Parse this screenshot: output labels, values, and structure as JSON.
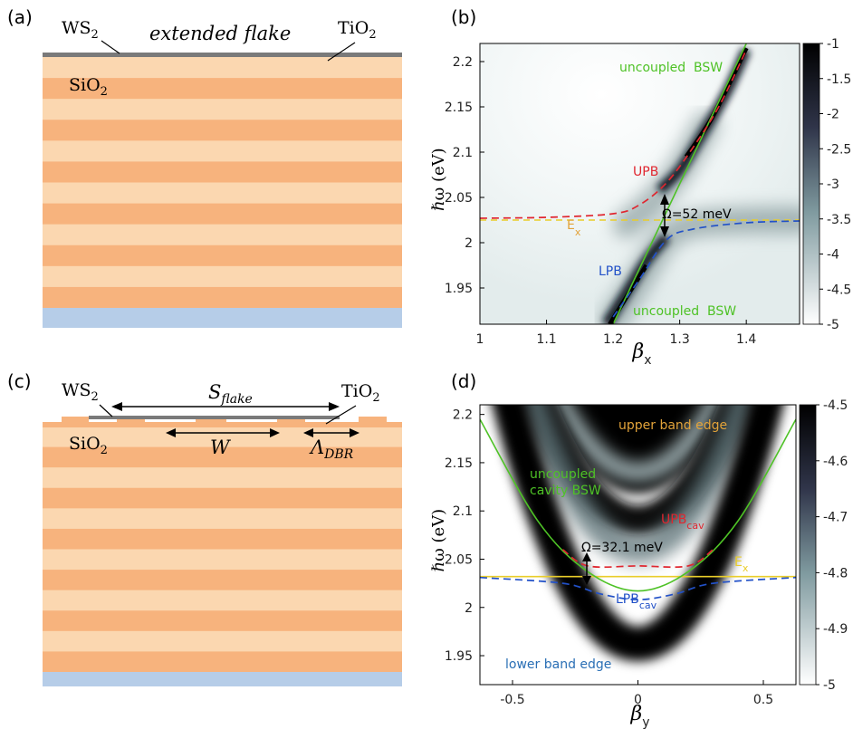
{
  "panels": {
    "a": {
      "label": "(a)",
      "ws2": "WS",
      "ws2_sub": "2",
      "flake": "extended flake",
      "tio2": "TiO",
      "tio2_sub": "2",
      "sio2": "SiO",
      "sio2_sub": "2"
    },
    "c": {
      "label": "(c)",
      "ws2": "WS",
      "ws2_sub": "2",
      "s": "S",
      "s_sub": "flake",
      "tio2": "TiO",
      "tio2_sub": "2",
      "sio2": "SiO",
      "sio2_sub": "2",
      "w": "W",
      "lambda": "Λ",
      "lambda_sub": "DBR"
    },
    "b_label": "(b)",
    "d_label": "(d)"
  },
  "colors": {
    "sio2_layer": "#fbd7b0",
    "tio2_layer": "#f7b37d",
    "substrate": "#b6cde8",
    "red": "#e0262f",
    "blue": "#2251c8",
    "green": "#4ec226",
    "yellow": "#e9cd2a",
    "orange": "#e2a33a"
  },
  "chart_data": [
    {
      "type": "heatmap",
      "panel": "(b)",
      "xlabel": "β",
      "xlabel_sub": "x",
      "ylabel": "ℏω (eV)",
      "xlim": [
        1.0,
        1.48
      ],
      "ylim": [
        1.91,
        2.22
      ],
      "xticks": [
        1,
        1.1,
        1.2,
        1.3,
        1.4
      ],
      "yticks": [
        1.95,
        2,
        2.05,
        2.1,
        2.15,
        2.2
      ],
      "colorbar": {
        "range": [
          -5,
          -1
        ],
        "ticks": [
          -1,
          -1.5,
          -2,
          -2.5,
          -3,
          -3.5,
          -4,
          -4.5,
          -5
        ]
      },
      "exciton_energy": 2.025,
      "rabi": "Ω=52 meV",
      "labels": {
        "upb": "UPB",
        "lpb": "LPB",
        "ex": "E",
        "ex_sub": "x",
        "bsw_top": "uncoupled  BSW",
        "bsw_bottom": "uncoupled  BSW"
      },
      "series": [
        {
          "name": "UPB",
          "x": [
            1.0,
            1.1,
            1.2,
            1.24,
            1.28,
            1.32,
            1.36,
            1.4
          ],
          "y": [
            2.027,
            2.028,
            2.032,
            2.042,
            2.066,
            2.105,
            2.152,
            2.213
          ]
        },
        {
          "name": "LPB",
          "x": [
            1.2,
            1.24,
            1.28,
            1.32,
            1.4,
            1.48
          ],
          "y": [
            1.918,
            1.96,
            2.003,
            2.015,
            2.022,
            2.024
          ]
        },
        {
          "name": "uncoupled BSW",
          "x": [
            1.2,
            1.4
          ],
          "y": [
            1.91,
            2.22
          ]
        }
      ]
    },
    {
      "type": "heatmap",
      "panel": "(d)",
      "xlabel": "β",
      "xlabel_sub": "y",
      "ylabel": "ℏω (eV)",
      "xlim": [
        -0.63,
        0.63
      ],
      "ylim": [
        1.92,
        2.21
      ],
      "xticks": [
        -0.5,
        0,
        0.5
      ],
      "yticks": [
        1.95,
        2,
        2.05,
        2.1,
        2.15,
        2.2
      ],
      "colorbar": {
        "range": [
          -5,
          -4.5
        ],
        "ticks": [
          -4.5,
          -4.6,
          -4.7,
          -4.8,
          -4.9,
          -5
        ]
      },
      "exciton_energy": 2.032,
      "rabi": "Ω=32.1 meV",
      "labels": {
        "upper": "upper band edge",
        "lower": "lower band edge",
        "bsw1": "uncoupled",
        "bsw2": "cavity BSW",
        "upb": "UPB",
        "upb_sub": "cav",
        "lpb": "LPB",
        "lpb_sub": "cav",
        "ex": "E",
        "ex_sub": "x"
      },
      "series": [
        {
          "name": "uncoupled cavity BSW",
          "x": [
            -0.63,
            -0.4,
            -0.2,
            0,
            0.2,
            0.4,
            0.63
          ],
          "y": [
            2.195,
            2.09,
            2.037,
            2.017,
            2.037,
            2.09,
            2.195
          ]
        },
        {
          "name": "UPB",
          "x": [
            -0.3,
            -0.2,
            0,
            0.2,
            0.3
          ],
          "y": [
            2.06,
            2.043,
            2.043,
            2.043,
            2.06
          ]
        },
        {
          "name": "LPB",
          "x": [
            -0.63,
            -0.3,
            -0.15,
            0,
            0.15,
            0.3,
            0.63
          ],
          "y": [
            2.031,
            2.025,
            2.014,
            2.008,
            2.014,
            2.025,
            2.031
          ]
        }
      ]
    }
  ]
}
